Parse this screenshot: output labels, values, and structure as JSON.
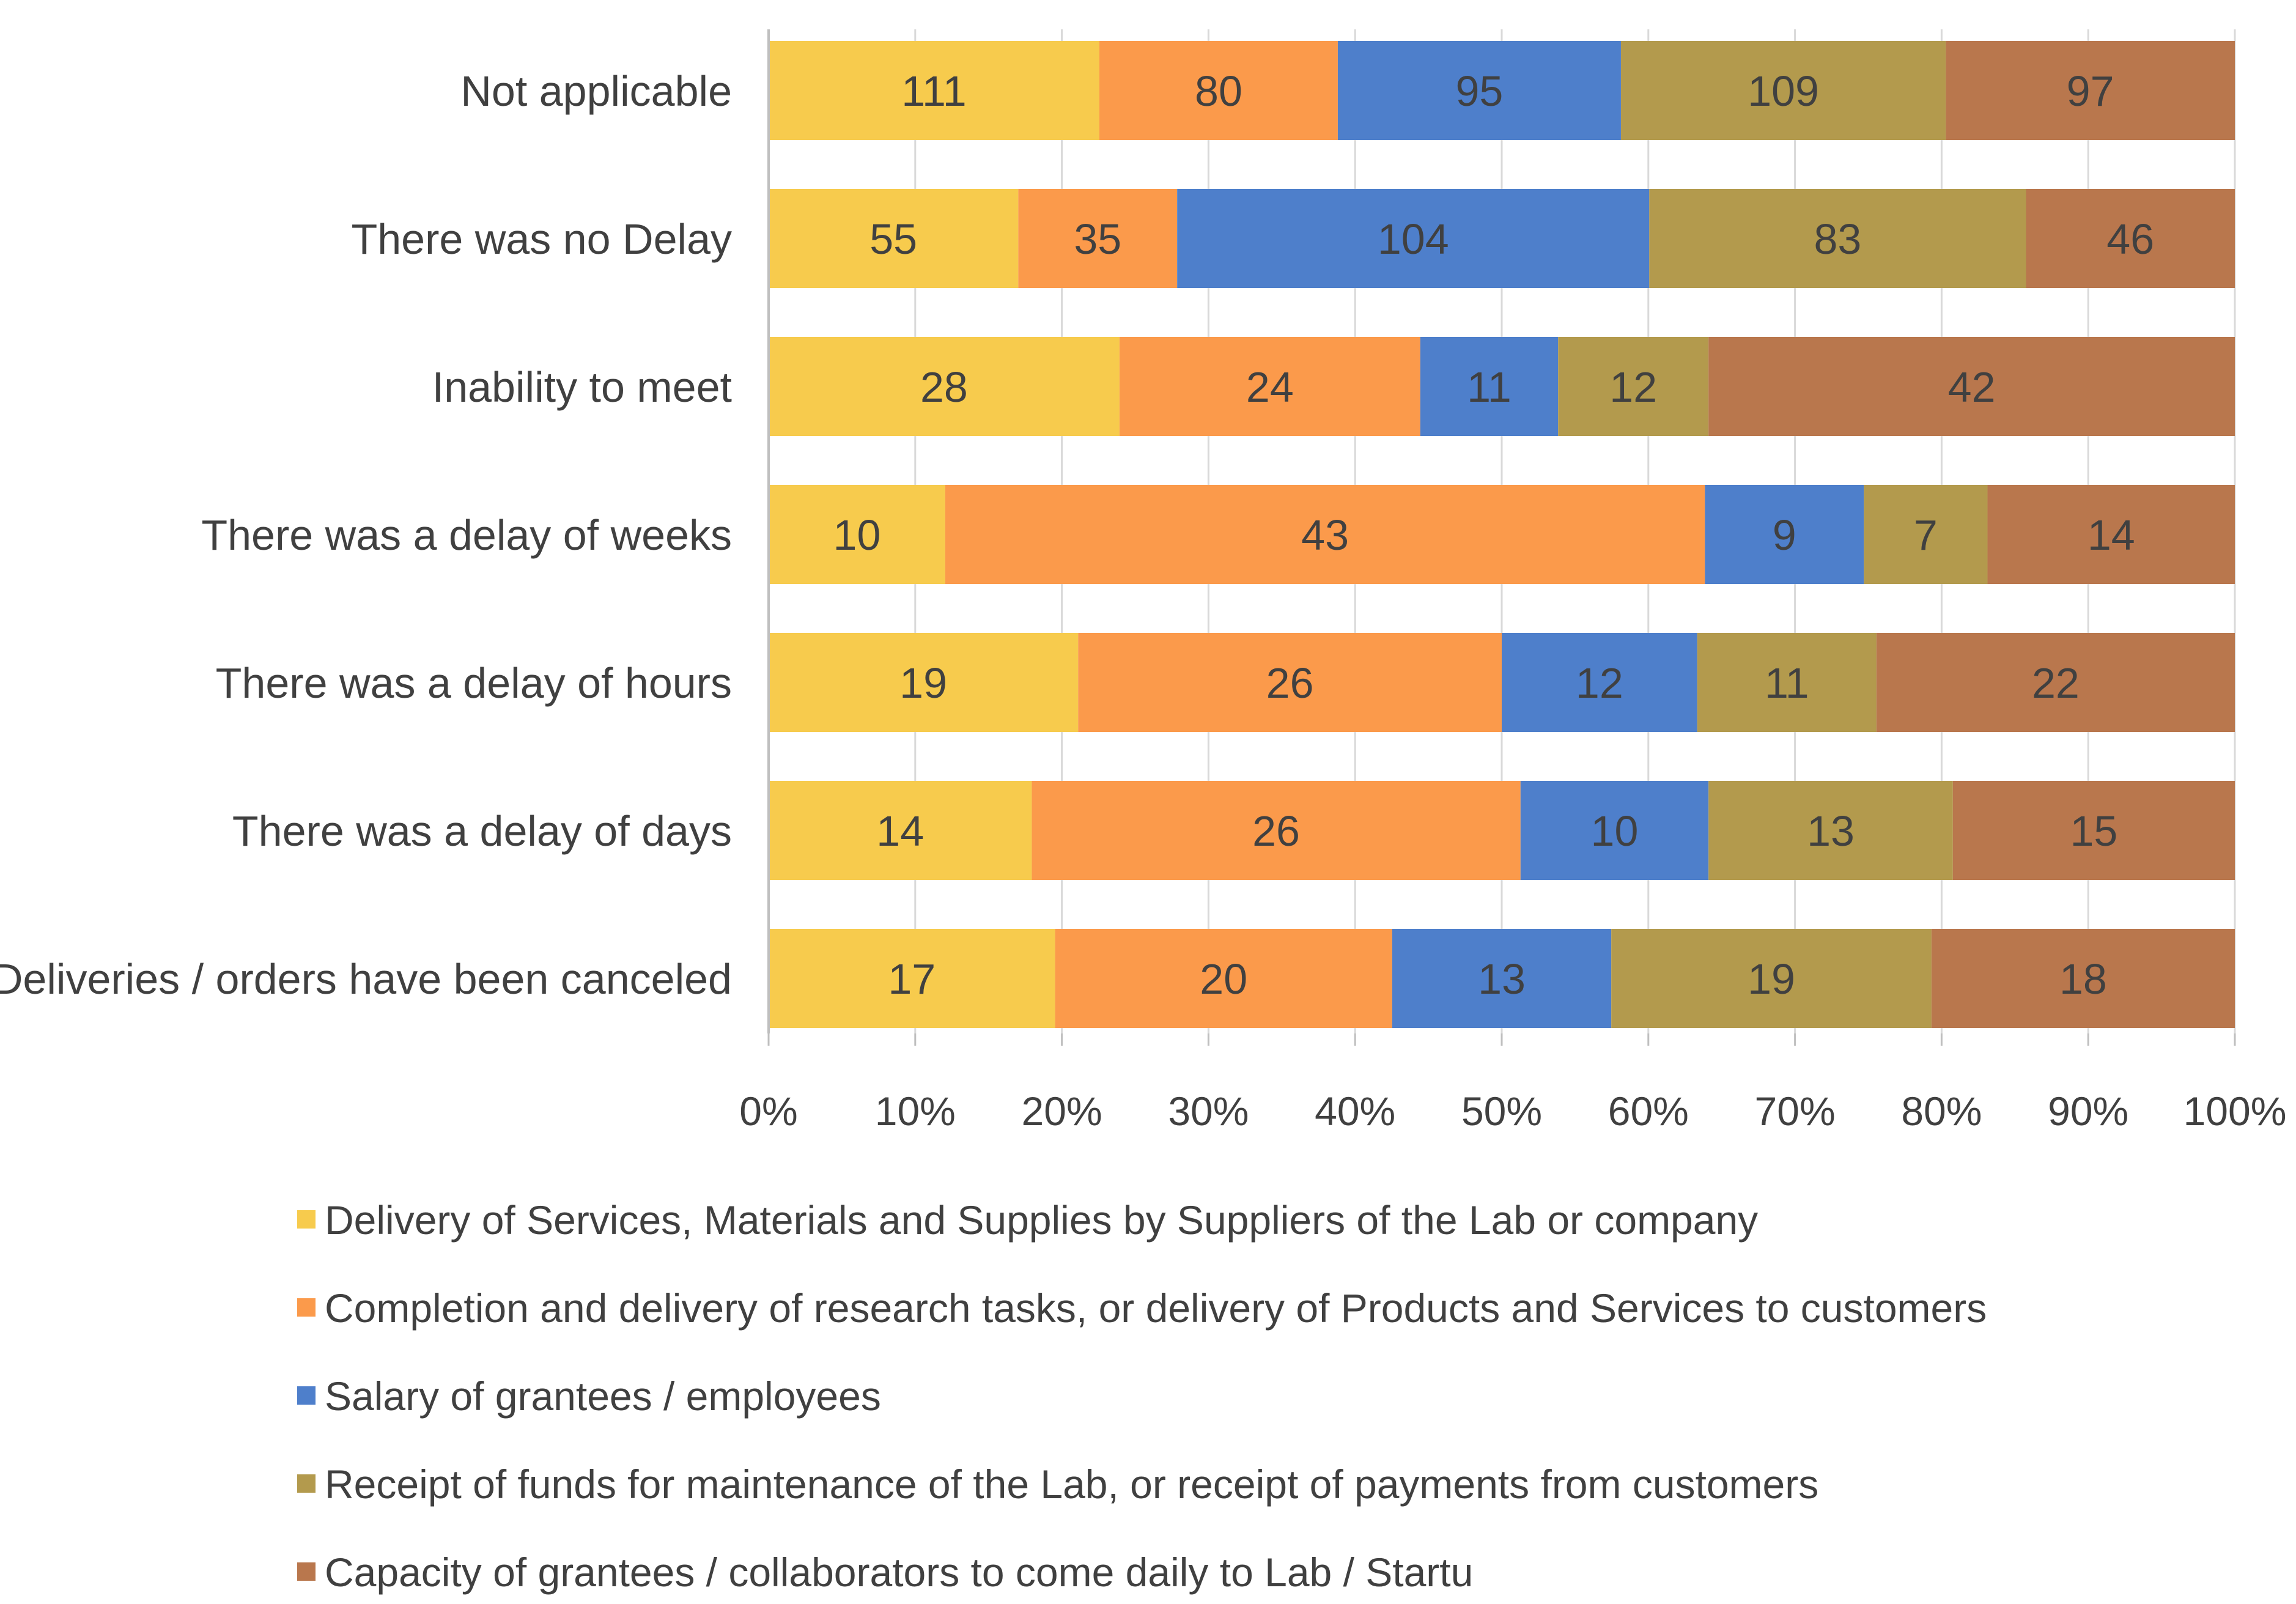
{
  "chart_data": {
    "type": "bar",
    "orientation": "horizontal",
    "stacked": "percent",
    "title": "",
    "xlabel": "",
    "ylabel": "",
    "xlim": [
      0,
      100
    ],
    "grid": true,
    "legend_position": "bottom",
    "categories": [
      "Not applicable",
      "There was no Delay",
      "Inability to meet",
      "There was a delay of weeks",
      "There was a delay of hours",
      "There was a delay of days",
      "Deliveries / orders have been canceled"
    ],
    "x_ticks": [
      "0%",
      "10%",
      "20%",
      "30%",
      "40%",
      "50%",
      "60%",
      "70%",
      "80%",
      "90%",
      "100%"
    ],
    "series": [
      {
        "name": "Delivery of Services, Materials and Supplies by Suppliers of the Lab or company",
        "color": "#F7CB4D",
        "values": [
          111,
          55,
          28,
          10,
          19,
          14,
          17
        ]
      },
      {
        "name": "Completion and delivery of research tasks, or delivery of Products and Services to customers",
        "color": "#FB9A4B",
        "values": [
          80,
          35,
          24,
          43,
          26,
          26,
          20
        ]
      },
      {
        "name": "Salary of grantees / employees",
        "color": "#4E7FCB",
        "values": [
          95,
          104,
          11,
          9,
          12,
          10,
          13
        ]
      },
      {
        "name": "Receipt of funds for maintenance of the Lab, or receipt of payments from customers",
        "color": "#B39A4D",
        "values": [
          109,
          83,
          12,
          7,
          11,
          13,
          19
        ]
      },
      {
        "name": "Capacity of grantees / collaborators to come daily to Lab / Startu",
        "color": "#B9774D",
        "values": [
          97,
          46,
          42,
          14,
          22,
          15,
          18
        ]
      }
    ]
  }
}
